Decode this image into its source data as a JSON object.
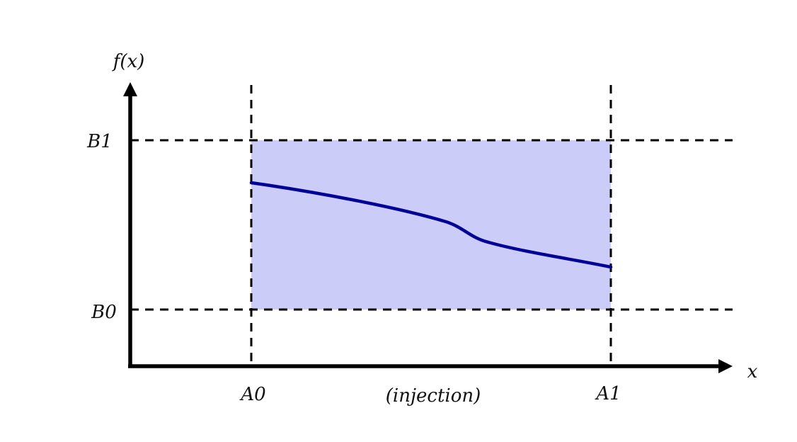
{
  "diagram": {
    "y_axis_label": "f(x)",
    "x_axis_label": "x",
    "domain_lower_label": "A0",
    "domain_upper_label": "A1",
    "range_lower_label": "B0",
    "range_upper_label": "B1",
    "caption": "(injection)"
  },
  "colors": {
    "axis": "#000000",
    "guide_dash": "#000000",
    "region_fill": "#ccccf8",
    "curve": "#000099",
    "text": "#111111"
  }
}
